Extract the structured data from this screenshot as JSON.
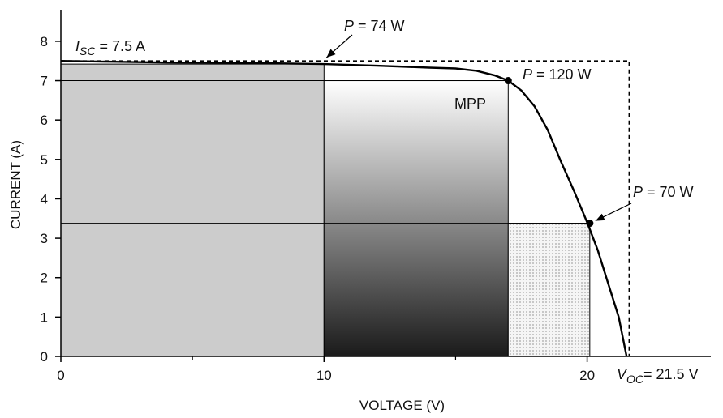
{
  "chart_data": {
    "type": "line",
    "xlabel": "VOLTAGE (V)",
    "ylabel": "CURRENT (A)",
    "xlim": [
      0,
      24.7
    ],
    "ylim": [
      0,
      8.8
    ],
    "x_ticks": [
      0,
      10,
      20
    ],
    "x_minor_ticks": [
      5,
      15
    ],
    "y_ticks": [
      0,
      1,
      2,
      3,
      4,
      5,
      6,
      7,
      8
    ],
    "grid": false,
    "series": [
      {
        "points": [
          [
            0,
            7.5
          ],
          [
            2,
            7.48
          ],
          [
            4,
            7.46
          ],
          [
            6,
            7.45
          ],
          [
            8,
            7.44
          ],
          [
            10,
            7.42
          ],
          [
            12,
            7.38
          ],
          [
            14,
            7.33
          ],
          [
            15,
            7.31
          ],
          [
            15.8,
            7.25
          ],
          [
            16.5,
            7.13
          ],
          [
            17,
            7.0
          ],
          [
            17.5,
            6.75
          ],
          [
            18,
            6.35
          ],
          [
            18.5,
            5.75
          ],
          [
            19,
            4.95
          ],
          [
            19.5,
            4.2
          ],
          [
            20,
            3.4
          ],
          [
            20.4,
            2.7
          ],
          [
            20.8,
            1.85
          ],
          [
            21.2,
            1.0
          ],
          [
            21.5,
            0
          ]
        ]
      }
    ],
    "annotations": {
      "isc": {
        "prefix": "I",
        "sub": "SC",
        "text": " = 7.5 A",
        "value": 7.5
      },
      "voc": {
        "prefix": "V",
        "sub": "OC",
        "text": "= 21.5 V",
        "value": 21.5
      },
      "p74": {
        "prefix": "P",
        "text": " = 74 W",
        "voltage": 10,
        "current": 7.42
      },
      "p120": {
        "prefix": "P",
        "text": " = 120 W",
        "voltage": 17,
        "current": 7.0
      },
      "mpp": {
        "text": "MPP"
      },
      "p70": {
        "prefix": "P",
        "text": " = 70 W",
        "voltage": 20.1,
        "current": 3.38
      }
    },
    "colors": {
      "curve": "#000000",
      "rect_74w": "#cccccc",
      "gradient_top": "#ffffff",
      "gradient_bottom": "#1a1a1a",
      "dotted_fill": "#f4f4f4"
    }
  }
}
